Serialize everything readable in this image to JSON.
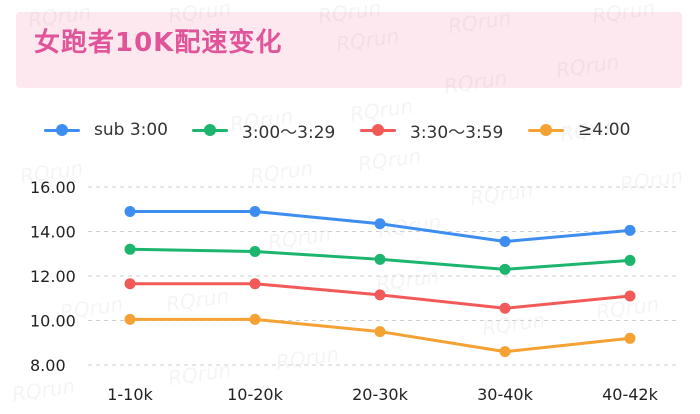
{
  "title": "女跑者10K配速变化",
  "watermark": "RQrun",
  "chart_data": {
    "type": "line",
    "categories": [
      "1-10k",
      "10-20k",
      "20-30k",
      "30-40k",
      "40-42k"
    ],
    "ylim": [
      8,
      16
    ],
    "yticks": [
      "8.00",
      "10.00",
      "12.00",
      "14.00",
      "16.00"
    ],
    "grid": true,
    "legend_position": "top",
    "series": [
      {
        "name": "sub 3:00",
        "color": "#3d8ef0",
        "values": [
          14.9,
          14.9,
          14.35,
          13.55,
          14.05
        ]
      },
      {
        "name": "3:00～3:29",
        "color": "#1cb56d",
        "values": [
          13.2,
          13.1,
          12.75,
          12.3,
          12.7
        ]
      },
      {
        "name": "3:30～3:59",
        "color": "#f25a5a",
        "values": [
          11.65,
          11.65,
          11.15,
          10.55,
          11.1
        ]
      },
      {
        "name": "≥4:00",
        "color": "#f5a133",
        "values": [
          10.05,
          10.05,
          9.5,
          8.6,
          9.2
        ]
      }
    ]
  }
}
